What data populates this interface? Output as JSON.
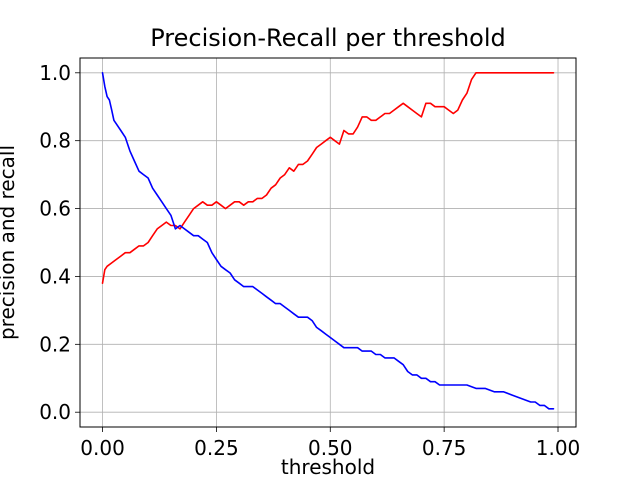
{
  "chart_data": {
    "type": "line",
    "title": "Precision-Recall per threshold",
    "xlabel": "threshold",
    "ylabel": "precision and recall",
    "xlim": [
      -0.0495,
      1.0395
    ],
    "ylim": [
      -0.0436,
      1.0436
    ],
    "xticks": [
      0.0,
      0.25,
      0.5,
      0.75,
      1.0
    ],
    "xtick_labels": [
      "0.00",
      "0.25",
      "0.50",
      "0.75",
      "1.00"
    ],
    "yticks": [
      0.0,
      0.2,
      0.4,
      0.6,
      0.8,
      1.0
    ],
    "ytick_labels": [
      "0.0",
      "0.2",
      "0.4",
      "0.6",
      "0.8",
      "1.0"
    ],
    "grid": true,
    "series": [
      {
        "name": "precision",
        "color": "#ff0000",
        "x": [
          0.0,
          0.005,
          0.01,
          0.02,
          0.03,
          0.04,
          0.05,
          0.06,
          0.07,
          0.08,
          0.09,
          0.1,
          0.11,
          0.12,
          0.13,
          0.14,
          0.15,
          0.16,
          0.17,
          0.18,
          0.19,
          0.2,
          0.21,
          0.22,
          0.23,
          0.24,
          0.25,
          0.26,
          0.27,
          0.28,
          0.29,
          0.3,
          0.31,
          0.32,
          0.33,
          0.34,
          0.35,
          0.36,
          0.37,
          0.38,
          0.39,
          0.4,
          0.41,
          0.42,
          0.43,
          0.44,
          0.45,
          0.46,
          0.47,
          0.48,
          0.49,
          0.5,
          0.51,
          0.52,
          0.53,
          0.54,
          0.55,
          0.56,
          0.57,
          0.58,
          0.59,
          0.6,
          0.61,
          0.62,
          0.63,
          0.64,
          0.65,
          0.66,
          0.67,
          0.68,
          0.69,
          0.7,
          0.71,
          0.72,
          0.73,
          0.74,
          0.75,
          0.76,
          0.77,
          0.78,
          0.79,
          0.8,
          0.81,
          0.82,
          0.83,
          0.84,
          0.85,
          0.9,
          0.95,
          0.99
        ],
        "y": [
          0.38,
          0.42,
          0.43,
          0.44,
          0.45,
          0.46,
          0.47,
          0.47,
          0.48,
          0.49,
          0.49,
          0.5,
          0.52,
          0.54,
          0.55,
          0.56,
          0.55,
          0.55,
          0.54,
          0.56,
          0.58,
          0.6,
          0.61,
          0.62,
          0.61,
          0.61,
          0.62,
          0.61,
          0.6,
          0.61,
          0.62,
          0.62,
          0.61,
          0.62,
          0.62,
          0.63,
          0.63,
          0.64,
          0.66,
          0.67,
          0.69,
          0.7,
          0.72,
          0.71,
          0.73,
          0.73,
          0.74,
          0.76,
          0.78,
          0.79,
          0.8,
          0.81,
          0.8,
          0.79,
          0.83,
          0.82,
          0.82,
          0.84,
          0.87,
          0.87,
          0.86,
          0.86,
          0.87,
          0.88,
          0.88,
          0.89,
          0.9,
          0.91,
          0.9,
          0.89,
          0.88,
          0.87,
          0.91,
          0.91,
          0.9,
          0.9,
          0.9,
          0.89,
          0.88,
          0.89,
          0.92,
          0.94,
          0.98,
          1.0,
          1.0,
          1.0,
          1.0,
          1.0,
          1.0,
          1.0
        ]
      },
      {
        "name": "recall",
        "color": "#0000ff",
        "x": [
          0.0,
          0.005,
          0.01,
          0.015,
          0.02,
          0.025,
          0.03,
          0.04,
          0.05,
          0.06,
          0.07,
          0.08,
          0.09,
          0.1,
          0.11,
          0.12,
          0.13,
          0.14,
          0.15,
          0.16,
          0.17,
          0.18,
          0.19,
          0.2,
          0.21,
          0.22,
          0.23,
          0.24,
          0.25,
          0.26,
          0.27,
          0.28,
          0.29,
          0.3,
          0.31,
          0.32,
          0.33,
          0.34,
          0.35,
          0.36,
          0.37,
          0.38,
          0.39,
          0.4,
          0.41,
          0.42,
          0.43,
          0.44,
          0.45,
          0.46,
          0.47,
          0.48,
          0.49,
          0.5,
          0.51,
          0.52,
          0.53,
          0.54,
          0.55,
          0.56,
          0.57,
          0.58,
          0.59,
          0.6,
          0.61,
          0.62,
          0.63,
          0.64,
          0.65,
          0.66,
          0.67,
          0.68,
          0.69,
          0.7,
          0.71,
          0.72,
          0.73,
          0.74,
          0.75,
          0.76,
          0.77,
          0.78,
          0.79,
          0.8,
          0.82,
          0.84,
          0.86,
          0.88,
          0.9,
          0.92,
          0.94,
          0.95,
          0.96,
          0.97,
          0.98,
          0.99
        ],
        "y": [
          1.0,
          0.96,
          0.93,
          0.92,
          0.89,
          0.86,
          0.85,
          0.83,
          0.81,
          0.77,
          0.74,
          0.71,
          0.7,
          0.69,
          0.66,
          0.64,
          0.62,
          0.6,
          0.58,
          0.54,
          0.55,
          0.54,
          0.53,
          0.52,
          0.52,
          0.51,
          0.5,
          0.47,
          0.45,
          0.43,
          0.42,
          0.41,
          0.39,
          0.38,
          0.37,
          0.37,
          0.37,
          0.36,
          0.35,
          0.34,
          0.33,
          0.32,
          0.32,
          0.31,
          0.3,
          0.29,
          0.28,
          0.28,
          0.28,
          0.27,
          0.25,
          0.24,
          0.23,
          0.22,
          0.21,
          0.2,
          0.19,
          0.19,
          0.19,
          0.19,
          0.18,
          0.18,
          0.18,
          0.17,
          0.17,
          0.16,
          0.16,
          0.16,
          0.15,
          0.14,
          0.12,
          0.11,
          0.11,
          0.1,
          0.1,
          0.09,
          0.09,
          0.08,
          0.08,
          0.08,
          0.08,
          0.08,
          0.08,
          0.08,
          0.07,
          0.07,
          0.06,
          0.06,
          0.05,
          0.04,
          0.03,
          0.03,
          0.02,
          0.02,
          0.01,
          0.01
        ]
      }
    ]
  }
}
